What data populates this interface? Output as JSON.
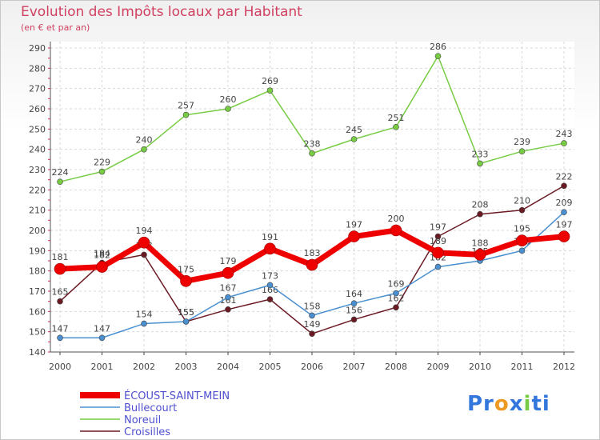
{
  "chart_data": {
    "type": "line",
    "title": "Evolution des Impôts locaux par Habitant",
    "subtitle": "(en € et par an)",
    "categories": [
      "2000",
      "2001",
      "2002",
      "2003",
      "2004",
      "2005",
      "2006",
      "2007",
      "2008",
      "2009",
      "2010",
      "2011",
      "2012"
    ],
    "ylim": [
      140,
      290
    ],
    "yticks": [
      140,
      150,
      160,
      170,
      180,
      190,
      200,
      210,
      220,
      230,
      240,
      250,
      260,
      270,
      280,
      290
    ],
    "grid": true,
    "legend_position": "bottom-left",
    "series": [
      {
        "name": "Noreuil",
        "color": "#77cc44",
        "width": 1.5,
        "values": [
          224,
          229,
          240,
          257,
          260,
          269,
          238,
          245,
          251,
          286,
          233,
          239,
          243
        ]
      },
      {
        "name": "Croisilles",
        "color": "#6b1a24",
        "width": 1.5,
        "values": [
          165,
          184,
          188,
          155,
          161,
          166,
          149,
          156,
          162,
          197,
          208,
          210,
          222
        ]
      },
      {
        "name": "Bullecourt",
        "color": "#4a90d0",
        "width": 1.5,
        "values": [
          147,
          147,
          154,
          155,
          167,
          173,
          158,
          164,
          169,
          182,
          185,
          190,
          209
        ]
      },
      {
        "name": "ÉCOUST-SAINT-MEIN",
        "color": "#ee0000",
        "width": 7,
        "values": [
          181,
          182,
          194,
          175,
          179,
          191,
          183,
          197,
          200,
          189,
          188,
          195,
          197
        ]
      }
    ],
    "legend_order": [
      "ÉCOUST-SAINT-MEIN",
      "Bullecourt",
      "Noreuil",
      "Croisilles"
    ]
  },
  "logo": {
    "text_parts": [
      "Pr",
      "o",
      "x",
      "i",
      "ti"
    ],
    "colors": [
      "#3377dd",
      "#ee9922",
      "#3377dd",
      "#77cc44",
      "#3377dd"
    ]
  }
}
